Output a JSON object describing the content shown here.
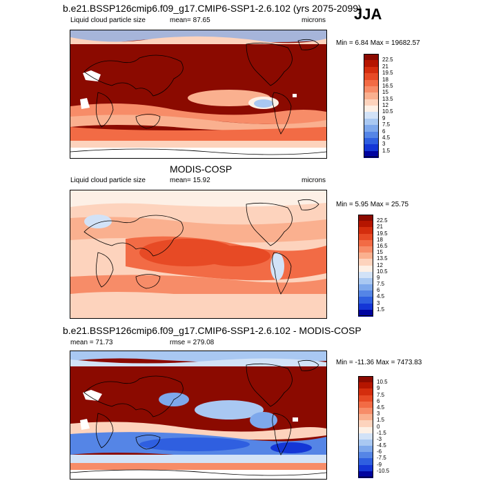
{
  "season": "JJA",
  "panels": [
    {
      "title": "b.e21.BSSP126cmip6.f09_g17.CMIP6-SSP1-2.6.102 (yrs 2075-2099)",
      "left_label": "Liquid cloud particle size",
      "mid_label": "mean=  87.65",
      "right_label": "microns",
      "minmax": "Min =  6.84 Max = 19682.57",
      "colorbar": {
        "ticks": [
          "22.5",
          "21",
          "19.5",
          "18",
          "16.5",
          "15",
          "13.5",
          "12",
          "10.5",
          "9",
          "7.5",
          "6",
          "4.5",
          "3",
          "1.5"
        ],
        "colors": [
          "#8b0a00",
          "#b51500",
          "#d42d0d",
          "#e74a25",
          "#f26b45",
          "#f78c68",
          "#fab08f",
          "#fdd3bd",
          "#fdf0e6",
          "#d2e2f7",
          "#a9c8f2",
          "#7ea8ec",
          "#5585e6",
          "#2f5fe0",
          "#1436d6",
          "#00039f"
        ]
      },
      "map_theme": "high"
    },
    {
      "title": "MODIS-COSP",
      "left_label": "Liquid cloud particle size",
      "mid_label": "mean=  15.92",
      "right_label": "microns",
      "minmax": "Min =  5.95 Max =  25.75",
      "colorbar": {
        "ticks": [
          "22.5",
          "21",
          "19.5",
          "18",
          "16.5",
          "15",
          "13.5",
          "12",
          "10.5",
          "9",
          "7.5",
          "6",
          "4.5",
          "3",
          "1.5"
        ],
        "colors": [
          "#8b0a00",
          "#b51500",
          "#d42d0d",
          "#e74a25",
          "#f26b45",
          "#f78c68",
          "#fab08f",
          "#fdd3bd",
          "#fdf0e6",
          "#d2e2f7",
          "#a9c8f2",
          "#7ea8ec",
          "#5585e6",
          "#2f5fe0",
          "#1436d6",
          "#00039f"
        ]
      },
      "map_theme": "obs"
    },
    {
      "title": "b.e21.BSSP126cmip6.f09_g17.CMIP6-SSP1-2.6.102 - MODIS-COSP",
      "left_label": "mean =  71.73",
      "mid_label": "rmse = 279.08",
      "right_label": "",
      "minmax": "Min = -11.36 Max = 7473.83",
      "colorbar": {
        "ticks": [
          "10.5",
          "9",
          "7.5",
          "6",
          "4.5",
          "3",
          "1.5",
          "0",
          "-1.5",
          "-3",
          "-4.5",
          "-6",
          "-7.5",
          "-9",
          "-10.5"
        ],
        "colors": [
          "#8b0a00",
          "#b51500",
          "#d42d0d",
          "#e74a25",
          "#f26b45",
          "#f78c68",
          "#fab08f",
          "#fdd3bd",
          "#fdf0e6",
          "#d2e2f7",
          "#a9c8f2",
          "#7ea8ec",
          "#5585e6",
          "#2f5fe0",
          "#1436d6",
          "#00039f"
        ]
      },
      "map_theme": "diff"
    }
  ]
}
